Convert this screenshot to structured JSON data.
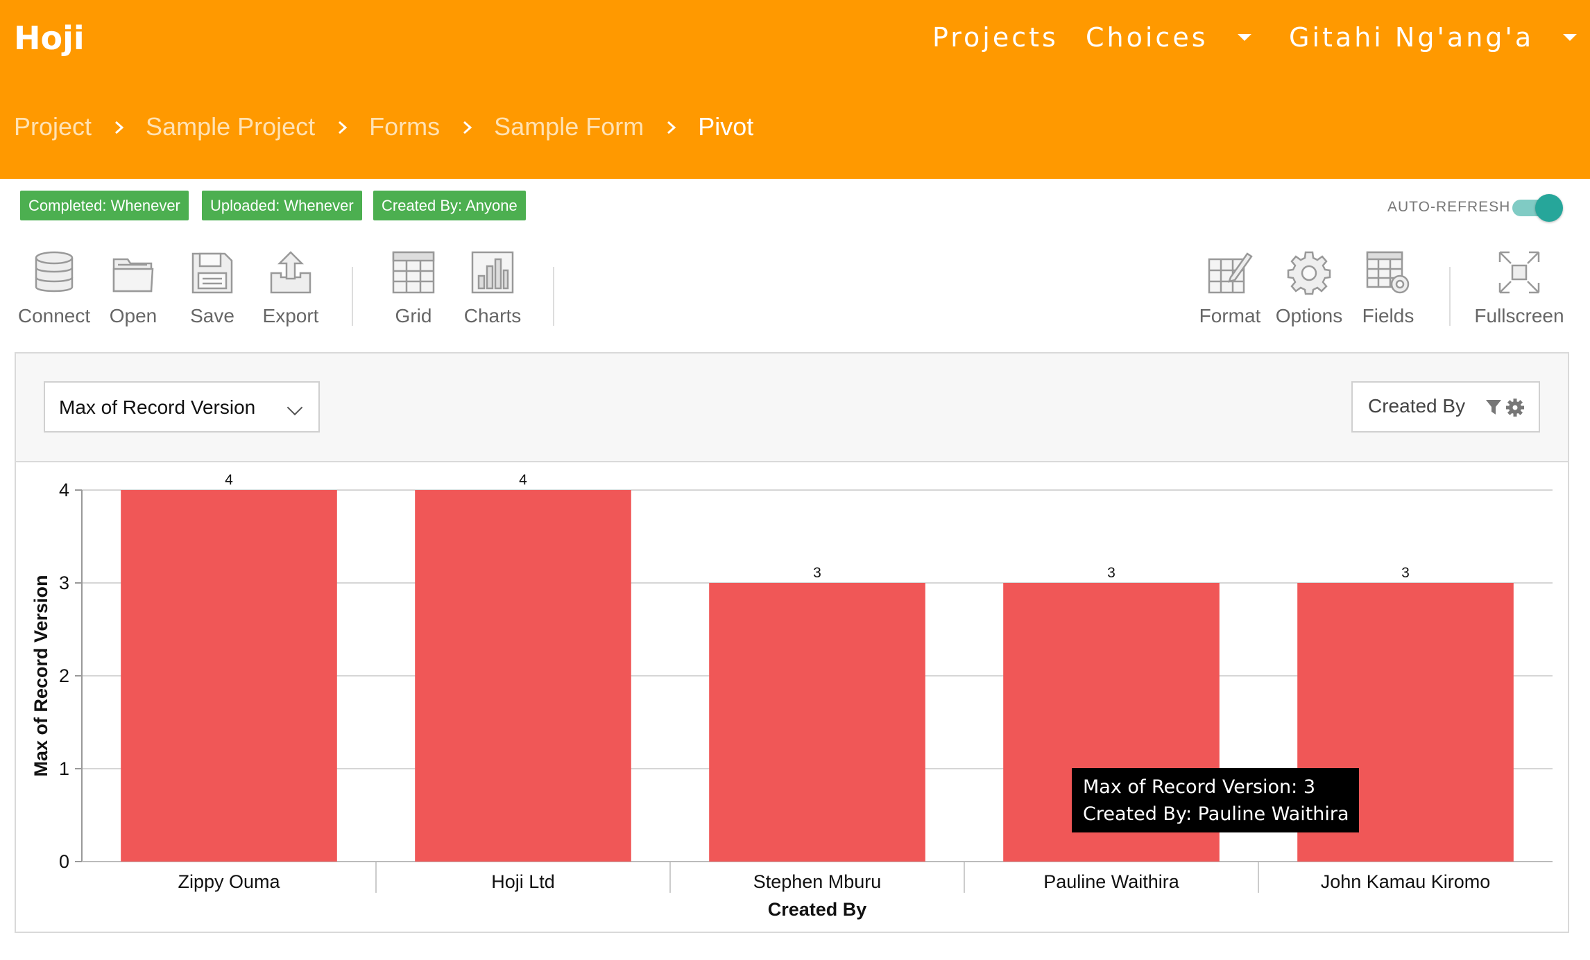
{
  "header": {
    "brand": "Hoji",
    "nav": {
      "projects": "Projects",
      "choices": "Choices",
      "user": "Gitahi Ng'ang'a"
    },
    "breadcrumb": [
      "Project",
      "Sample Project",
      "Forms",
      "Sample Form",
      "Pivot"
    ]
  },
  "filters": {
    "chips": [
      "Completed: Whenever",
      "Uploaded: Whenever",
      "Created By: Anyone"
    ],
    "auto_refresh_label": "AUTO-REFRESH",
    "auto_refresh_on": true
  },
  "toolbar": {
    "connect": "Connect",
    "open": "Open",
    "save": "Save",
    "export": "Export",
    "grid": "Grid",
    "charts": "Charts",
    "format": "Format",
    "options": "Options",
    "fields": "Fields",
    "fullscreen": "Fullscreen"
  },
  "pivot": {
    "measure_select": "Max of Record Version",
    "field_box": "Created By"
  },
  "tooltip": {
    "line1": "Max of Record Version: 3",
    "line2": "Created By: Pauline Waithira"
  },
  "chart_data": {
    "type": "bar",
    "categories": [
      "Zippy Ouma",
      "Hoji Ltd",
      "Stephen Mburu",
      "Pauline Waithira",
      "John Kamau Kiromo"
    ],
    "values": [
      4,
      4,
      3,
      3,
      3
    ],
    "xlabel": "Created By",
    "ylabel": "Max of Record Version",
    "ylim": [
      0,
      4
    ],
    "yticks": [
      0,
      1,
      2,
      3,
      4
    ],
    "grid": true,
    "bar_color": "#f05757"
  }
}
